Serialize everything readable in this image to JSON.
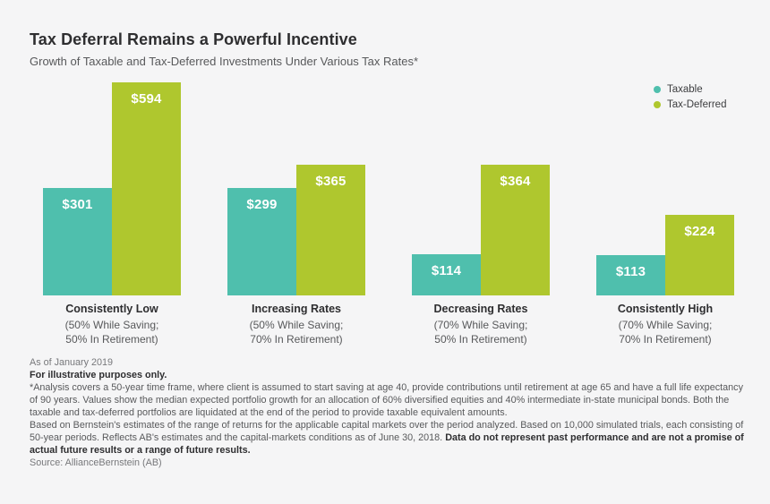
{
  "header": {
    "title": "Tax Deferral Remains a Powerful Incentive",
    "subtitle": "Growth of Taxable and Tax-Deferred Investments Under Various Tax Rates*"
  },
  "legend": [
    {
      "label": "Taxable",
      "color": "#4fbfad"
    },
    {
      "label": "Tax-Deferred",
      "color": "#afc72e"
    }
  ],
  "chart_data": {
    "type": "bar",
    "title": "Tax Deferral Remains a Powerful Incentive",
    "subtitle": "Growth of Taxable and Tax-Deferred Investments Under Various Tax Rates*",
    "categories": [
      "Consistently Low",
      "Increasing Rates",
      "Decreasing Rates",
      "Consistently High"
    ],
    "category_sublabels": [
      [
        "(50% While Saving;",
        "50% In Retirement)"
      ],
      [
        "(50% While Saving;",
        "70% In Retirement)"
      ],
      [
        "(70% While Saving;",
        "50% In Retirement)"
      ],
      [
        "(70% While Saving;",
        "70% In Retirement)"
      ]
    ],
    "series": [
      {
        "name": "Taxable",
        "color": "#4fbfad",
        "values": [
          301,
          299,
          114,
          113
        ]
      },
      {
        "name": "Tax-Deferred",
        "color": "#afc72e",
        "values": [
          594,
          365,
          364,
          224
        ]
      }
    ],
    "value_prefix": "$",
    "ylim": [
      0,
      600
    ],
    "grid": false,
    "legend_position": "top-right",
    "xlabel": "",
    "ylabel": ""
  },
  "footnotes": {
    "as_of": "As of January 2019",
    "illustrative": "For illustrative purposes only.",
    "analysis": "*Analysis covers a 50-year time frame, where client is assumed to start saving at age 40, provide contributions until retirement at age 65 and have a full life expectancy of 90 years. Values show the median expected portfolio growth for an allocation of 60% diversified equities and 40% intermediate in-state municipal bonds. Both the taxable and tax-deferred portfolios are liquidated at the end of the period to provide taxable equivalent amounts.",
    "based_on": "Based on Bernstein's estimates of the range of returns for the applicable capital markets over the period analyzed. Based on 10,000 simulated trials, each consisting of 50-year periods. Reflects AB's estimates and the capital-markets conditions as of June 30, 2018. ",
    "disclaimer_bold": "Data do not represent past performance and are not a promise of actual future results or a range of future results.",
    "source": "Source: AllianceBernstein (AB)"
  }
}
